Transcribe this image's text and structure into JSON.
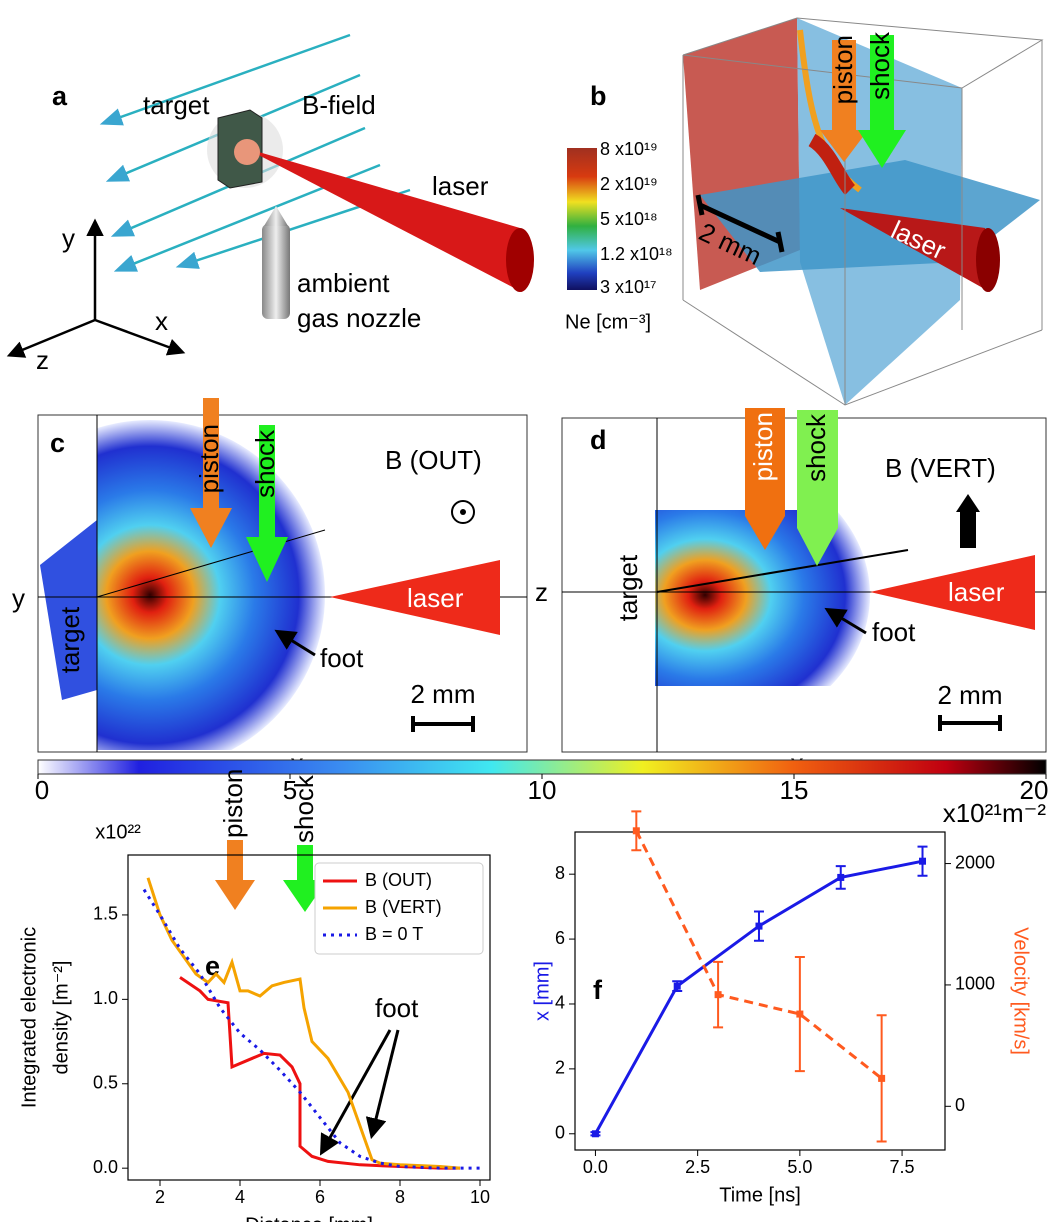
{
  "panels": {
    "a": {
      "label": "a",
      "target": "target",
      "bfield": "B-field",
      "laser": "laser",
      "nozzle": [
        "ambient",
        "gas nozzle"
      ],
      "axes": [
        "y",
        "x",
        "z"
      ]
    },
    "b": {
      "label": "b",
      "piston": "piston",
      "shock": "shock",
      "colorbar_labels": [
        "8 x10¹⁹",
        "2 x10¹⁹",
        "5 x10¹⁸",
        "1.2 x10¹⁸",
        "3 x10¹⁷"
      ],
      "colorbar_title": "Ne [cm⁻³]",
      "scale": "2 mm",
      "laser": "laser"
    },
    "c": {
      "label": "c",
      "piston": "piston",
      "shock": "shock",
      "field": "B (OUT)",
      "vertical_axis": "y",
      "target": "target",
      "laser": "laser",
      "foot": "foot",
      "scale": "2 mm",
      "horizontal_axis": "x"
    },
    "d": {
      "label": "d",
      "piston": "piston",
      "shock": "shock",
      "field": "B (VERT)",
      "vertical_axis": "z",
      "target": "target",
      "laser": "laser",
      "foot": "foot",
      "scale": "2 mm",
      "horizontal_axis": "x"
    },
    "colorbar": {
      "lim": [
        0,
        20
      ],
      "ticks": [
        0,
        5,
        10,
        15,
        20
      ],
      "unit": "x10²¹m⁻²"
    }
  },
  "chart_data": [
    {
      "type": "line",
      "panel_label": "e",
      "scale_label": "x10²²",
      "xlabel": "Distance [mm]",
      "ylabel": [
        "Integrated electronic",
        "density [m⁻²]"
      ],
      "xlim": [
        1.2,
        10.25
      ],
      "ylim": [
        -0.07,
        1.855
      ],
      "xticks": [
        2,
        4,
        6,
        8,
        10
      ],
      "yticks": [
        {
          "value": 0,
          "label": "0.0"
        },
        {
          "value": 0.5,
          "label": "0.5"
        },
        {
          "value": 1,
          "label": "1.0"
        },
        {
          "value": 1.5,
          "label": "1.5"
        }
      ],
      "legend": "upper right",
      "annotations": {
        "piston": "piston",
        "shock": "shock",
        "foot": "foot"
      },
      "series": [
        {
          "name": "B (OUT)",
          "color": "#ee1111",
          "linestyle": "solid",
          "x": [
            2.5,
            3.0,
            3.2,
            3.7,
            3.8,
            4.3,
            4.6,
            5.0,
            5.3,
            5.5,
            5.5,
            5.8,
            6.2,
            7.0,
            8.0,
            9.0,
            9.5
          ],
          "values": [
            1.13,
            1.05,
            1.0,
            0.98,
            0.6,
            0.65,
            0.68,
            0.67,
            0.6,
            0.5,
            0.13,
            0.07,
            0.04,
            0.02,
            0.01,
            0.0,
            0.0
          ]
        },
        {
          "name": "B (VERT)",
          "color": "#f5a300",
          "linestyle": "solid",
          "x": [
            1.7,
            2.0,
            2.3,
            2.6,
            2.9,
            3.2,
            3.4,
            3.6,
            3.8,
            4.0,
            4.2,
            4.5,
            4.8,
            5.1,
            5.5,
            5.6,
            5.8,
            6.2,
            6.7,
            7.0,
            7.3,
            7.5,
            8.0,
            9.0,
            9.5
          ],
          "values": [
            1.72,
            1.5,
            1.35,
            1.25,
            1.15,
            1.1,
            1.15,
            1.1,
            1.22,
            1.05,
            1.05,
            1.02,
            1.08,
            1.1,
            1.12,
            0.95,
            0.75,
            0.65,
            0.45,
            0.25,
            0.05,
            0.03,
            0.02,
            0.01,
            0.0
          ]
        },
        {
          "name": "B = 0 T",
          "color": "#1a1ae6",
          "linestyle": "dotted",
          "x": [
            1.6,
            2.0,
            2.5,
            3.0,
            3.5,
            4.0,
            4.5,
            5.0,
            5.5,
            6.0,
            6.5,
            7.0,
            7.5,
            8.0,
            9.0,
            10.0
          ],
          "values": [
            1.65,
            1.5,
            1.3,
            1.15,
            0.95,
            0.8,
            0.7,
            0.58,
            0.45,
            0.3,
            0.15,
            0.07,
            0.03,
            0.01,
            0.0,
            0.0
          ]
        }
      ]
    },
    {
      "type": "line",
      "panel_label": "f",
      "xlabel": "Time [ns]",
      "ylabel": "x [mm]",
      "y2label": "Velocity [km/s]",
      "xlim": [
        -0.5,
        8.55
      ],
      "ylim": [
        -0.5,
        9.3
      ],
      "y2lim": [
        -360,
        2260
      ],
      "xticks": [
        {
          "value": 0,
          "label": "0.0"
        },
        {
          "value": 2.5,
          "label": "2.5"
        },
        {
          "value": 5,
          "label": "5.0"
        },
        {
          "value": 7.5,
          "label": "7.5"
        }
      ],
      "yticks": [
        0,
        2,
        4,
        6,
        8
      ],
      "y2ticks": [
        0,
        1000,
        2000
      ],
      "series": [
        {
          "color": "#1a1ae6",
          "linestyle": "solid",
          "x": [
            0,
            2,
            4,
            6,
            8
          ],
          "values": [
            0,
            4.55,
            6.4,
            7.9,
            8.4
          ],
          "errors": [
            0.05,
            0.15,
            0.45,
            0.35,
            0.45
          ]
        },
        {
          "color": "#ff5a1f",
          "linestyle": "dashed",
          "axis": "y2",
          "x": [
            1,
            3,
            5,
            7
          ],
          "values": [
            2270,
            920,
            760,
            230
          ],
          "errors": [
            160,
            270,
            470,
            520
          ]
        }
      ]
    }
  ]
}
